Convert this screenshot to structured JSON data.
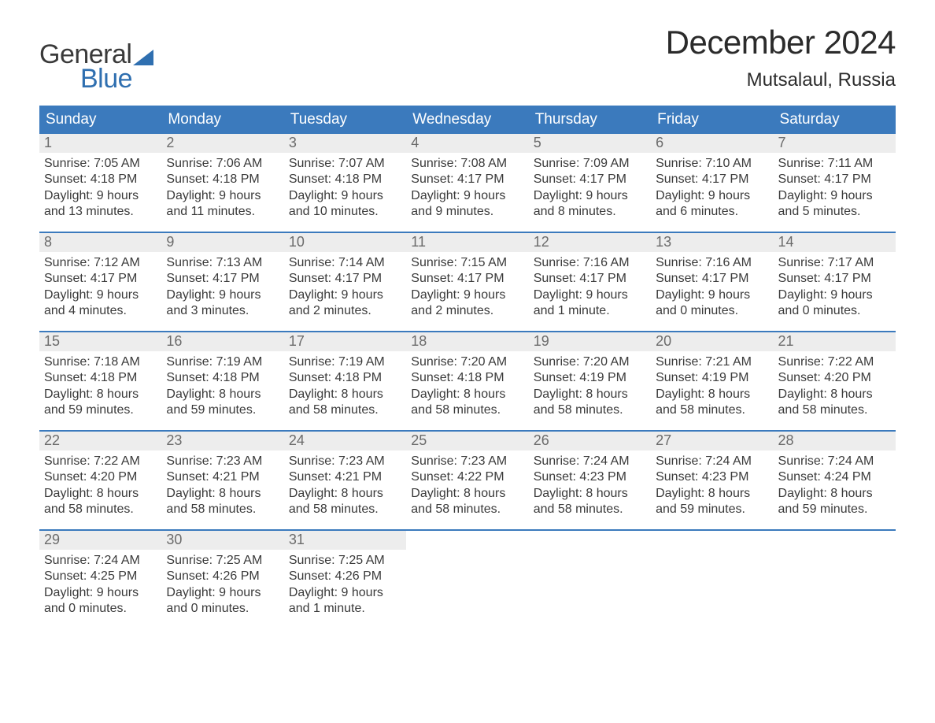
{
  "logo": {
    "general": "General",
    "blue": "Blue"
  },
  "title": "December 2024",
  "location": "Mutsalaul, Russia",
  "colors": {
    "header_bg": "#3b7abd",
    "header_text": "#ffffff",
    "daynum_bg": "#ededed",
    "daynum_text": "#6b6b6b",
    "body_text": "#3a3a3a",
    "rule": "#3b7abd",
    "logo_blue": "#2f6fb0"
  },
  "typography": {
    "title_fontsize": 42,
    "location_fontsize": 24,
    "dow_fontsize": 19,
    "daynum_fontsize": 18,
    "body_fontsize": 16
  },
  "dow": [
    "Sunday",
    "Monday",
    "Tuesday",
    "Wednesday",
    "Thursday",
    "Friday",
    "Saturday"
  ],
  "labels": {
    "sunrise": "Sunrise:",
    "sunset": "Sunset:",
    "daylight": "Daylight:"
  },
  "weeks": [
    [
      {
        "n": "1",
        "sr": "7:05 AM",
        "ss": "4:18 PM",
        "dl1": "9 hours",
        "dl2": "and 13 minutes."
      },
      {
        "n": "2",
        "sr": "7:06 AM",
        "ss": "4:18 PM",
        "dl1": "9 hours",
        "dl2": "and 11 minutes."
      },
      {
        "n": "3",
        "sr": "7:07 AM",
        "ss": "4:18 PM",
        "dl1": "9 hours",
        "dl2": "and 10 minutes."
      },
      {
        "n": "4",
        "sr": "7:08 AM",
        "ss": "4:17 PM",
        "dl1": "9 hours",
        "dl2": "and 9 minutes."
      },
      {
        "n": "5",
        "sr": "7:09 AM",
        "ss": "4:17 PM",
        "dl1": "9 hours",
        "dl2": "and 8 minutes."
      },
      {
        "n": "6",
        "sr": "7:10 AM",
        "ss": "4:17 PM",
        "dl1": "9 hours",
        "dl2": "and 6 minutes."
      },
      {
        "n": "7",
        "sr": "7:11 AM",
        "ss": "4:17 PM",
        "dl1": "9 hours",
        "dl2": "and 5 minutes."
      }
    ],
    [
      {
        "n": "8",
        "sr": "7:12 AM",
        "ss": "4:17 PM",
        "dl1": "9 hours",
        "dl2": "and 4 minutes."
      },
      {
        "n": "9",
        "sr": "7:13 AM",
        "ss": "4:17 PM",
        "dl1": "9 hours",
        "dl2": "and 3 minutes."
      },
      {
        "n": "10",
        "sr": "7:14 AM",
        "ss": "4:17 PM",
        "dl1": "9 hours",
        "dl2": "and 2 minutes."
      },
      {
        "n": "11",
        "sr": "7:15 AM",
        "ss": "4:17 PM",
        "dl1": "9 hours",
        "dl2": "and 2 minutes."
      },
      {
        "n": "12",
        "sr": "7:16 AM",
        "ss": "4:17 PM",
        "dl1": "9 hours",
        "dl2": "and 1 minute."
      },
      {
        "n": "13",
        "sr": "7:16 AM",
        "ss": "4:17 PM",
        "dl1": "9 hours",
        "dl2": "and 0 minutes."
      },
      {
        "n": "14",
        "sr": "7:17 AM",
        "ss": "4:17 PM",
        "dl1": "9 hours",
        "dl2": "and 0 minutes."
      }
    ],
    [
      {
        "n": "15",
        "sr": "7:18 AM",
        "ss": "4:18 PM",
        "dl1": "8 hours",
        "dl2": "and 59 minutes."
      },
      {
        "n": "16",
        "sr": "7:19 AM",
        "ss": "4:18 PM",
        "dl1": "8 hours",
        "dl2": "and 59 minutes."
      },
      {
        "n": "17",
        "sr": "7:19 AM",
        "ss": "4:18 PM",
        "dl1": "8 hours",
        "dl2": "and 58 minutes."
      },
      {
        "n": "18",
        "sr": "7:20 AM",
        "ss": "4:18 PM",
        "dl1": "8 hours",
        "dl2": "and 58 minutes."
      },
      {
        "n": "19",
        "sr": "7:20 AM",
        "ss": "4:19 PM",
        "dl1": "8 hours",
        "dl2": "and 58 minutes."
      },
      {
        "n": "20",
        "sr": "7:21 AM",
        "ss": "4:19 PM",
        "dl1": "8 hours",
        "dl2": "and 58 minutes."
      },
      {
        "n": "21",
        "sr": "7:22 AM",
        "ss": "4:20 PM",
        "dl1": "8 hours",
        "dl2": "and 58 minutes."
      }
    ],
    [
      {
        "n": "22",
        "sr": "7:22 AM",
        "ss": "4:20 PM",
        "dl1": "8 hours",
        "dl2": "and 58 minutes."
      },
      {
        "n": "23",
        "sr": "7:23 AM",
        "ss": "4:21 PM",
        "dl1": "8 hours",
        "dl2": "and 58 minutes."
      },
      {
        "n": "24",
        "sr": "7:23 AM",
        "ss": "4:21 PM",
        "dl1": "8 hours",
        "dl2": "and 58 minutes."
      },
      {
        "n": "25",
        "sr": "7:23 AM",
        "ss": "4:22 PM",
        "dl1": "8 hours",
        "dl2": "and 58 minutes."
      },
      {
        "n": "26",
        "sr": "7:24 AM",
        "ss": "4:23 PM",
        "dl1": "8 hours",
        "dl2": "and 58 minutes."
      },
      {
        "n": "27",
        "sr": "7:24 AM",
        "ss": "4:23 PM",
        "dl1": "8 hours",
        "dl2": "and 59 minutes."
      },
      {
        "n": "28",
        "sr": "7:24 AM",
        "ss": "4:24 PM",
        "dl1": "8 hours",
        "dl2": "and 59 minutes."
      }
    ],
    [
      {
        "n": "29",
        "sr": "7:24 AM",
        "ss": "4:25 PM",
        "dl1": "9 hours",
        "dl2": "and 0 minutes."
      },
      {
        "n": "30",
        "sr": "7:25 AM",
        "ss": "4:26 PM",
        "dl1": "9 hours",
        "dl2": "and 0 minutes."
      },
      {
        "n": "31",
        "sr": "7:25 AM",
        "ss": "4:26 PM",
        "dl1": "9 hours",
        "dl2": "and 1 minute."
      },
      {
        "empty": true
      },
      {
        "empty": true
      },
      {
        "empty": true
      },
      {
        "empty": true
      }
    ]
  ]
}
